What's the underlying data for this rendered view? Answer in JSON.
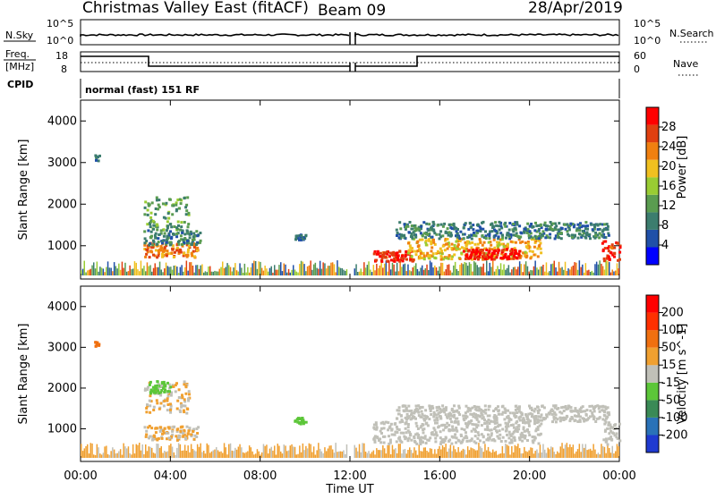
{
  "header": {
    "station": "Christmas Valley East (fitACF)",
    "beam": "Beam 09",
    "date": "28/Apr/2019"
  },
  "top_panels": {
    "nsky_label": "N.Sky",
    "nsky_ticks": [
      "10^5",
      "10^0"
    ],
    "nsearch_label": "N.Search",
    "nsearch_ticks": [
      "10^5",
      "10^0"
    ],
    "freq_label_1": "Freq.",
    "freq_label_2": "[MHz]",
    "freq_ticks": [
      "18",
      "8"
    ],
    "nave_label": "Nave",
    "nave_ticks": [
      "60",
      "0"
    ],
    "cpid_label": "CPID",
    "cpid_text": "normal (fast) 151 RF"
  },
  "colors": {
    "power": [
      "#0000ff",
      "#2050a8",
      "#3c7d6e",
      "#5a9c50",
      "#99cc33",
      "#f0c020",
      "#f08010",
      "#e04010",
      "#ff0000"
    ],
    "velocity": [
      "#1f3ad0",
      "#2a72b8",
      "#3a8a56",
      "#5cc639",
      "#c0c0b8",
      "#f0a030",
      "#f07010",
      "#ff3000",
      "#ff0000"
    ]
  },
  "chart_data": [
    {
      "type": "heatmap",
      "name": "power",
      "ylabel": "Slant Range [km]",
      "yticks": [
        "4000",
        "3000",
        "2000",
        "1000"
      ],
      "ylim": [
        200,
        4500
      ],
      "xlim": [
        0,
        24
      ],
      "colorbar_label": "Power [dB]",
      "colorbar_ticks": [
        "28",
        "24",
        "20",
        "16",
        "12",
        "8",
        "4"
      ],
      "clim": [
        0,
        32
      ],
      "blobs": [
        {
          "t0": 2.8,
          "t1": 4.8,
          "r0": 1400,
          "r1": 2200,
          "level": 12
        },
        {
          "t0": 2.8,
          "t1": 5.2,
          "r0": 750,
          "r1": 1100,
          "level": 24
        },
        {
          "t0": 2.8,
          "t1": 5.3,
          "r0": 1050,
          "r1": 1400,
          "level": 10
        },
        {
          "t0": 9.5,
          "t1": 10.0,
          "r0": 1150,
          "r1": 1300,
          "level": 8
        },
        {
          "t0": 13.0,
          "t1": 14.8,
          "r0": 650,
          "r1": 900,
          "level": 28
        },
        {
          "t0": 14.5,
          "t1": 20.5,
          "r0": 700,
          "r1": 1200,
          "level": 20
        },
        {
          "t0": 14.0,
          "t1": 23.5,
          "r0": 1200,
          "r1": 1600,
          "level": 9
        },
        {
          "t0": 17.0,
          "t1": 19.5,
          "r0": 700,
          "r1": 950,
          "level": 30
        },
        {
          "t0": 23.2,
          "t1": 24.0,
          "r0": 650,
          "r1": 1200,
          "level": 28
        },
        {
          "t0": 0.6,
          "t1": 0.8,
          "r0": 3050,
          "r1": 3200,
          "level": 8
        }
      ]
    },
    {
      "type": "heatmap",
      "name": "velocity",
      "ylabel": "Slant Range [km]",
      "yticks": [
        "4000",
        "3000",
        "2000",
        "1000"
      ],
      "ylim": [
        200,
        4500
      ],
      "xlim": [
        0,
        24
      ],
      "xlabel": "Time UT",
      "xticks": [
        "00:00",
        "04:00",
        "08:00",
        "12:00",
        "16:00",
        "20:00",
        "00:00"
      ],
      "colorbar_label": "Velocity [m s^-1]",
      "colorbar_ticks": [
        "200",
        "100",
        "50",
        "15",
        "-15",
        "-50",
        "-100",
        "-200"
      ],
      "clim": [
        -250,
        250
      ],
      "blobs": [
        {
          "t0": 2.8,
          "t1": 4.8,
          "r0": 1400,
          "r1": 2200,
          "level": 30
        },
        {
          "t0": 2.8,
          "t1": 5.2,
          "r0": 750,
          "r1": 1100,
          "level": 30
        },
        {
          "t0": 3.0,
          "t1": 4.0,
          "r0": 1900,
          "r1": 2200,
          "level": -40
        },
        {
          "t0": 9.5,
          "t1": 10.0,
          "r0": 1150,
          "r1": 1300,
          "level": -50
        },
        {
          "t0": 13.0,
          "t1": 20.5,
          "r0": 650,
          "r1": 1200,
          "level": 0
        },
        {
          "t0": 14.0,
          "t1": 23.5,
          "r0": 1200,
          "r1": 1600,
          "level": 0
        },
        {
          "t0": 23.2,
          "t1": 24.0,
          "r0": 650,
          "r1": 1200,
          "level": 0
        },
        {
          "t0": 0.6,
          "t1": 0.8,
          "r0": 3050,
          "r1": 3200,
          "level": 120
        }
      ]
    }
  ]
}
